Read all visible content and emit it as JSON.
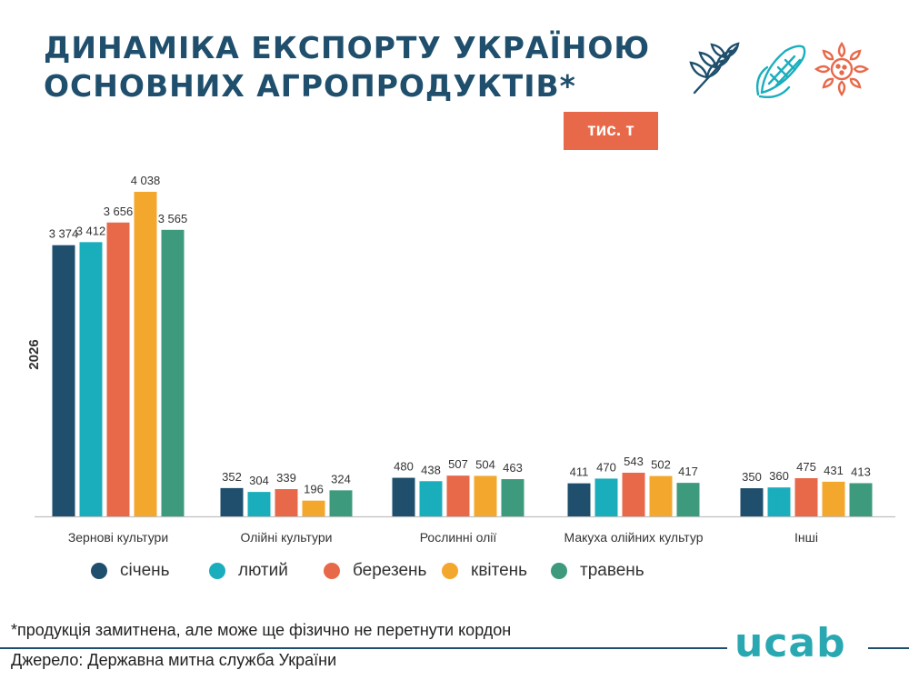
{
  "title_lines": [
    "ДИНАМІКА ЕКСПОРТУ УКРАЇНОЮ",
    "ОСНОВНИХ АГРОПРОДУКТІВ*"
  ],
  "unit_badge": "тис. т",
  "colors": {
    "title": "#1f4f6c",
    "січень": "#1f4f6c",
    "лютий": "#1aaebd",
    "березень": "#e8694a",
    "квітень": "#f3a72d",
    "травень": "#3d9a7c",
    "badge": "#e8694a",
    "logo": "#2aa8b2"
  },
  "icons": [
    "wheat-icon",
    "corn-icon",
    "sunflower-icon"
  ],
  "chart_data": {
    "type": "bar",
    "ylabel": "2026",
    "categories": [
      "Зернові культури",
      "Олійні культури",
      "Рослинні олії",
      "Макуха олійних культур",
      "Інші"
    ],
    "series": [
      {
        "name": "січень",
        "values": [
          3374,
          352,
          480,
          411,
          350
        ],
        "labels": [
          "3 374",
          "352",
          "480",
          "411",
          "350"
        ]
      },
      {
        "name": "лютий",
        "values": [
          3412,
          304,
          438,
          470,
          360
        ],
        "labels": [
          "3 412",
          "304",
          "438",
          "470",
          "360"
        ]
      },
      {
        "name": "березень",
        "values": [
          3656,
          339,
          507,
          543,
          475
        ],
        "labels": [
          "3 656",
          "339",
          "507",
          "543",
          "475"
        ]
      },
      {
        "name": "квітень",
        "values": [
          4038,
          196,
          504,
          502,
          431
        ],
        "labels": [
          "4 038",
          "196",
          "504",
          "502",
          "431"
        ]
      },
      {
        "name": "травень",
        "values": [
          3565,
          324,
          463,
          417,
          413
        ],
        "labels": [
          "3 565",
          "324",
          "463",
          "417",
          "413"
        ]
      }
    ],
    "ylim": [
      0,
      4038
    ],
    "grid": false,
    "legend_position": "bottom"
  },
  "footnote": "*продукція замитнена, але може ще фізично не перетнути кордон",
  "source": "Джерело: Державна митна служба України",
  "logo_text": "ucab"
}
